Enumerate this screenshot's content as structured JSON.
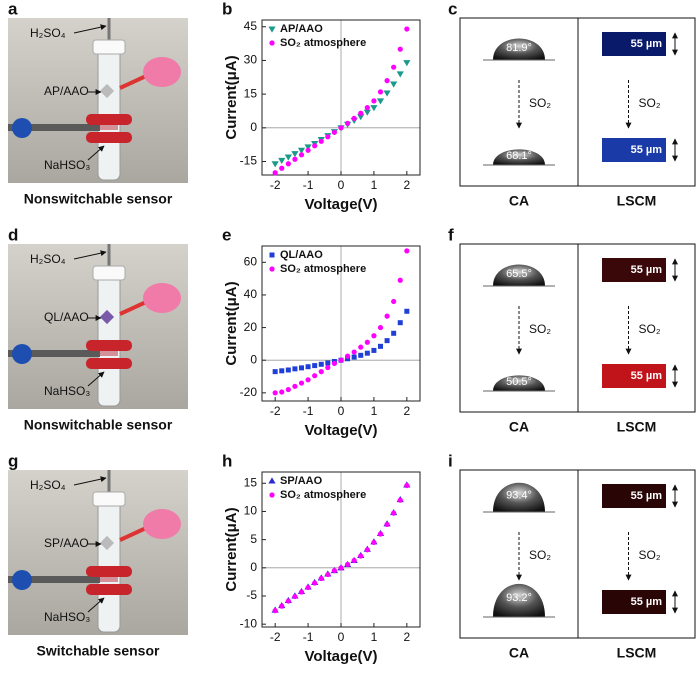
{
  "photos": [
    {
      "label": "a",
      "acid": "H₂SO₄",
      "sensor": "AP/AAO",
      "salt": "NaHSO₃",
      "caption": "Nonswitchable sensor"
    },
    {
      "label": "d",
      "acid": "H₂SO₄",
      "sensor": "QL/AAO",
      "salt": "NaHSO₃",
      "caption": "Nonswitchable sensor"
    },
    {
      "label": "g",
      "acid": "H₂SO₄",
      "sensor": "SP/AAO",
      "salt": "NaHSO₃",
      "caption": "Switchable sensor"
    }
  ],
  "chart_data": [
    {
      "type": "scatter",
      "label": "b",
      "x_label": "Voltage(V)",
      "y_label": "Current(μA)",
      "x": [
        -2,
        -1.8,
        -1.6,
        -1.4,
        -1.2,
        -1,
        -0.8,
        -0.6,
        -0.4,
        -0.2,
        0,
        0.2,
        0.4,
        0.6,
        0.8,
        1,
        1.2,
        1.4,
        1.6,
        1.8,
        2
      ],
      "xlim": [
        -2.4,
        2.4
      ],
      "xticks": [
        -2,
        -1,
        0,
        1,
        2
      ],
      "ylim": [
        -21,
        48
      ],
      "yticks": [
        -15,
        0,
        15,
        30,
        45
      ],
      "series": [
        {
          "name": "AP/AAO",
          "color": "#1a9a8a",
          "marker": "triangle-down",
          "values": [
            -16,
            -14.5,
            -13,
            -11.5,
            -10,
            -8.5,
            -7,
            -5.2,
            -3.5,
            -1.7,
            0,
            1.6,
            3.3,
            5,
            7,
            9,
            12,
            15.5,
            19.5,
            24,
            29
          ]
        },
        {
          "name": "SO₂ atmosphere",
          "color": "#ff00ff",
          "marker": "circle",
          "values": [
            -20,
            -18,
            -16,
            -14,
            -12,
            -10,
            -8,
            -6,
            -4,
            -2,
            0,
            2,
            4.2,
            6.5,
            9,
            12,
            16,
            21,
            27,
            35,
            44
          ]
        }
      ]
    },
    {
      "type": "scatter",
      "label": "e",
      "x_label": "Voltage(V)",
      "y_label": "Current(μA)",
      "x": [
        -2,
        -1.8,
        -1.6,
        -1.4,
        -1.2,
        -1,
        -0.8,
        -0.6,
        -0.4,
        -0.2,
        0,
        0.2,
        0.4,
        0.6,
        0.8,
        1,
        1.2,
        1.4,
        1.6,
        1.8,
        2
      ],
      "xlim": [
        -2.4,
        2.4
      ],
      "xticks": [
        -2,
        -1,
        0,
        1,
        2
      ],
      "ylim": [
        -25,
        70
      ],
      "yticks": [
        -20,
        0,
        20,
        40,
        60
      ],
      "series": [
        {
          "name": "QL/AAO",
          "color": "#1f3fd6",
          "marker": "square",
          "values": [
            -7,
            -6.5,
            -6,
            -5.3,
            -4.7,
            -4,
            -3.3,
            -2.5,
            -1.7,
            -0.8,
            0,
            0.9,
            1.9,
            3,
            4.3,
            6,
            8.5,
            12,
            16.5,
            23,
            30
          ]
        },
        {
          "name": "SO₂ atmosphere",
          "color": "#ff00ff",
          "marker": "circle",
          "values": [
            -20,
            -19.5,
            -18,
            -16,
            -14,
            -12,
            -9.5,
            -7,
            -4.5,
            -2,
            0,
            2.5,
            5,
            8,
            11,
            15,
            20,
            27,
            36,
            49,
            67
          ]
        }
      ]
    },
    {
      "type": "scatter",
      "label": "h",
      "x_label": "Voltage(V)",
      "y_label": "Current(μA)",
      "x": [
        -2,
        -1.8,
        -1.6,
        -1.4,
        -1.2,
        -1,
        -0.8,
        -0.6,
        -0.4,
        -0.2,
        0,
        0.2,
        0.4,
        0.6,
        0.8,
        1,
        1.2,
        1.4,
        1.6,
        1.8,
        2
      ],
      "xlim": [
        -2.4,
        2.4
      ],
      "xticks": [
        -2,
        -1,
        0,
        1,
        2
      ],
      "ylim": [
        -10.5,
        17
      ],
      "yticks": [
        -10,
        -5,
        0,
        5,
        10,
        15
      ],
      "series": [
        {
          "name": "SP/AAO",
          "color": "#2a2ad0",
          "marker": "triangle-up",
          "values": [
            -7.5,
            -6.7,
            -5.8,
            -5,
            -4.2,
            -3.4,
            -2.6,
            -1.8,
            -1.1,
            -0.5,
            0,
            0.6,
            1.3,
            2.2,
            3.3,
            4.6,
            6.1,
            7.8,
            9.8,
            12.1,
            14.7
          ]
        },
        {
          "name": "SO₂ atmosphere",
          "color": "#ff00ff",
          "marker": "circle",
          "values": [
            -7.6,
            -6.8,
            -5.9,
            -5.1,
            -4.3,
            -3.5,
            -2.7,
            -1.9,
            -1.2,
            -0.5,
            0,
            0.6,
            1.3,
            2.1,
            3.2,
            4.5,
            6,
            7.7,
            9.7,
            12,
            14.6
          ]
        }
      ]
    }
  ],
  "wetting": [
    {
      "label": "c",
      "angle_before": "81.9°",
      "angle_after": "68.1°",
      "gas_left": "SO₂",
      "gas_right": "SO₂",
      "scale_top": "55 µm",
      "scale_bottom": "55 µm",
      "col_left": "CA",
      "col_right": "LSCM"
    },
    {
      "label": "f",
      "angle_before": "65.5°",
      "angle_after": "50.5°",
      "gas_left": "SO₂",
      "gas_right": "SO₂",
      "scale_top": "55 µm",
      "scale_bottom": "55 µm",
      "col_left": "CA",
      "col_right": "LSCM"
    },
    {
      "label": "i",
      "angle_before": "93.4°",
      "angle_after": "93.2°",
      "gas_left": "SO₂",
      "gas_right": "SO₂",
      "scale_top": "55 µm",
      "scale_bottom": "55 µm",
      "col_left": "CA",
      "col_right": "LSCM"
    }
  ]
}
